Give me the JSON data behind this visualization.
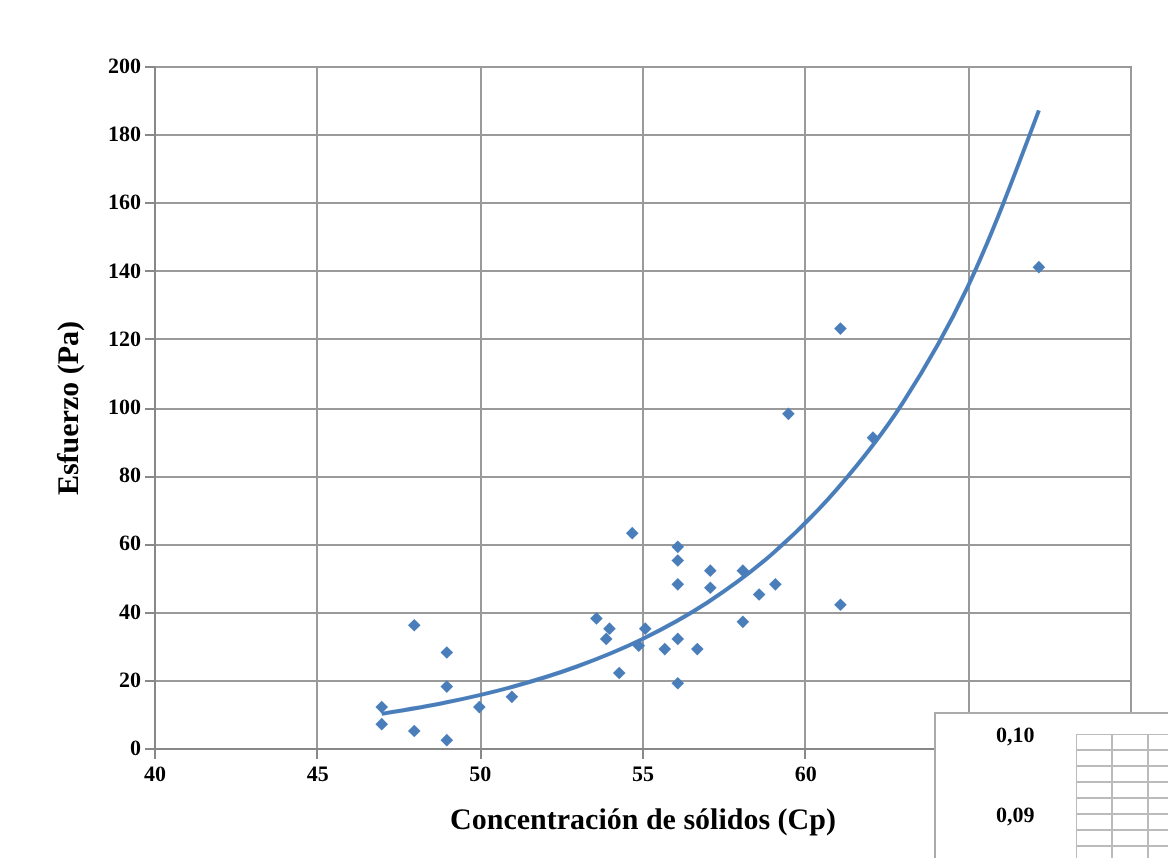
{
  "chart_data": [
    {
      "type": "scatter",
      "xlabel": "Concentración de sólidos (Cp)",
      "ylabel": "Esfuerzo (Pa)",
      "xlim": [
        40,
        70
      ],
      "ylim": [
        0,
        200
      ],
      "xticks": [
        40,
        45,
        50,
        55,
        60,
        {
          "value": 65,
          "label": null
        },
        {
          "value": 70,
          "label": null
        }
      ],
      "yticks": [
        0,
        20,
        40,
        60,
        80,
        100,
        120,
        140,
        160,
        180,
        200
      ],
      "grid": true,
      "marker": "diamond",
      "x": [
        47,
        47,
        48,
        48,
        49,
        49,
        49,
        50,
        51,
        53.6,
        53.9,
        54.0,
        54.3,
        54.7,
        54.9,
        55.1,
        55.7,
        56.1,
        56.1,
        56.1,
        56.1,
        56.1,
        56.7,
        57.1,
        57.1,
        58.1,
        58.1,
        58.6,
        59.1,
        59.5,
        61.1,
        61.1,
        62.1,
        67.2
      ],
      "series": [
        {
          "color": "#4a7ebb",
          "values": [
            12,
            7,
            36,
            5,
            28,
            18,
            2.3,
            12,
            15,
            38,
            32,
            35,
            22,
            63,
            30,
            35,
            29,
            59,
            55,
            48,
            32,
            19,
            29,
            52,
            47,
            52,
            37,
            45,
            48,
            98,
            123,
            42,
            91,
            141
          ]
        },
        {
          "type": "line",
          "color": "#4a7ebb",
          "marker": "none",
          "x": [
            47,
            49,
            51,
            53,
            55,
            57,
            59,
            61,
            63,
            65,
            67.2
          ],
          "values": [
            10,
            13.4,
            17.9,
            23.9,
            31.9,
            42.6,
            56.9,
            76,
            101,
            135,
            187
          ]
        }
      ]
    },
    {
      "type": "other",
      "annotations": [
        "0,10",
        "0,09"
      ]
    }
  ]
}
